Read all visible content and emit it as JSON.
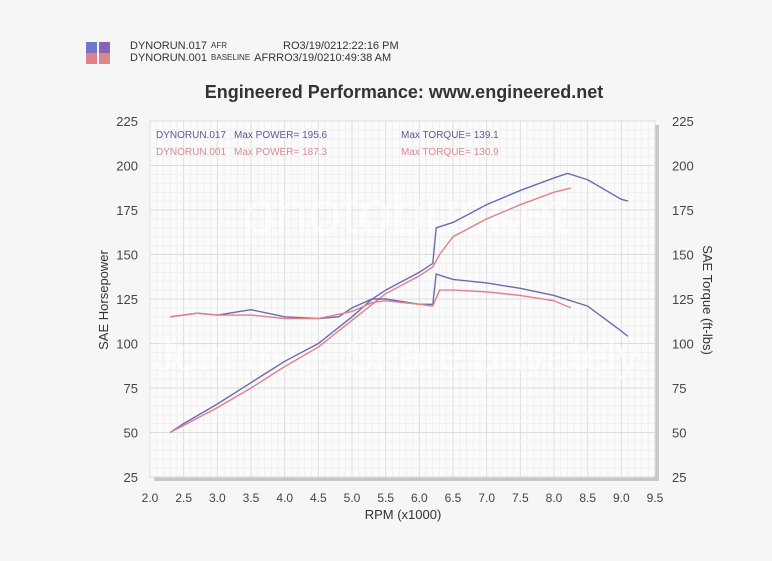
{
  "header": {
    "runs": [
      {
        "name": "DYNORUN.017",
        "tag": "AFR",
        "note": "RO",
        "date": "3/19/02",
        "time": "12:22:16 PM",
        "color": "#6a6ab4"
      },
      {
        "name": "DYNORUN.001",
        "tag": "BASELINE",
        "note": "AFRRO",
        "date": "3/19/02",
        "time": "10:49:38 AM",
        "color": "#e0808c"
      }
    ],
    "title": "Engineered Performance:   www.engineered.net"
  },
  "watermark": {
    "line1": "photobucket",
    "line2": "Join free. Share privately."
  },
  "chart_data": {
    "type": "line",
    "title": "Engineered Performance:   www.engineered.net",
    "xlabel": "RPM (x1000)",
    "ylabel": "SAE Horsepower",
    "ylabel_right": "SAE Torque (ft-lbs)",
    "xlim": [
      2.0,
      9.5
    ],
    "ylim": [
      25,
      225
    ],
    "xticks": [
      "2.0",
      "2.5",
      "3.0",
      "3.5",
      "4.0",
      "4.5",
      "5.0",
      "5.5",
      "6.0",
      "6.5",
      "7.0",
      "7.5",
      "8.0",
      "8.5",
      "9.0",
      "9.5"
    ],
    "yticks": [
      "25",
      "50",
      "75",
      "100",
      "125",
      "150",
      "175",
      "200",
      "225"
    ],
    "grid": true,
    "annotations": [
      {
        "run": "DYNORUN.017",
        "power": "Max POWER= 195.6",
        "torque": "Max TORQUE= 139.1",
        "color": "#5a5a9a"
      },
      {
        "run": "DYNORUN.001",
        "power": "Max POWER= 187.3",
        "torque": "Max TORQUE= 130.9",
        "color": "#d88a96"
      }
    ],
    "series": [
      {
        "name": "DYNORUN.017 Power",
        "color": "#6a6ab4",
        "x": [
          2.3,
          2.5,
          3.0,
          3.5,
          4.0,
          4.5,
          5.0,
          5.3,
          5.5,
          6.0,
          6.2,
          6.25,
          6.5,
          7.0,
          7.5,
          8.0,
          8.2,
          8.5,
          9.0,
          9.1
        ],
        "y": [
          50,
          55,
          66,
          78,
          90,
          100,
          115,
          125,
          130,
          140,
          145,
          165,
          168,
          178,
          186,
          193,
          195.6,
          192,
          181,
          180
        ]
      },
      {
        "name": "DYNORUN.001 Power",
        "color": "#e0808c",
        "x": [
          2.3,
          2.5,
          3.0,
          3.5,
          4.0,
          4.5,
          5.0,
          5.3,
          5.5,
          6.0,
          6.2,
          6.3,
          6.5,
          7.0,
          7.5,
          8.0,
          8.25
        ],
        "y": [
          50,
          54,
          64,
          75,
          87,
          98,
          113,
          122,
          128,
          138,
          143,
          150,
          160,
          170,
          178,
          185,
          187.3
        ]
      },
      {
        "name": "DYNORUN.017 Torque",
        "color": "#6a6ab4",
        "x": [
          2.3,
          2.7,
          3.0,
          3.5,
          4.0,
          4.5,
          4.8,
          5.0,
          5.3,
          5.5,
          6.0,
          6.2,
          6.25,
          6.5,
          7.0,
          7.5,
          8.0,
          8.5,
          9.0,
          9.1
        ],
        "y": [
          115,
          117,
          116,
          119,
          115,
          114,
          115,
          120,
          125,
          125,
          122,
          122,
          139,
          136,
          134,
          131,
          127,
          121,
          107,
          104
        ]
      },
      {
        "name": "DYNORUN.001 Torque",
        "color": "#e0808c",
        "x": [
          2.3,
          2.7,
          3.0,
          3.5,
          4.0,
          4.5,
          5.0,
          5.3,
          5.5,
          6.0,
          6.2,
          6.3,
          6.5,
          7.0,
          7.5,
          8.0,
          8.25
        ],
        "y": [
          115,
          117,
          116,
          116,
          114,
          114,
          118,
          123,
          124,
          122,
          121,
          130,
          130,
          129,
          127,
          124,
          120
        ]
      }
    ]
  }
}
